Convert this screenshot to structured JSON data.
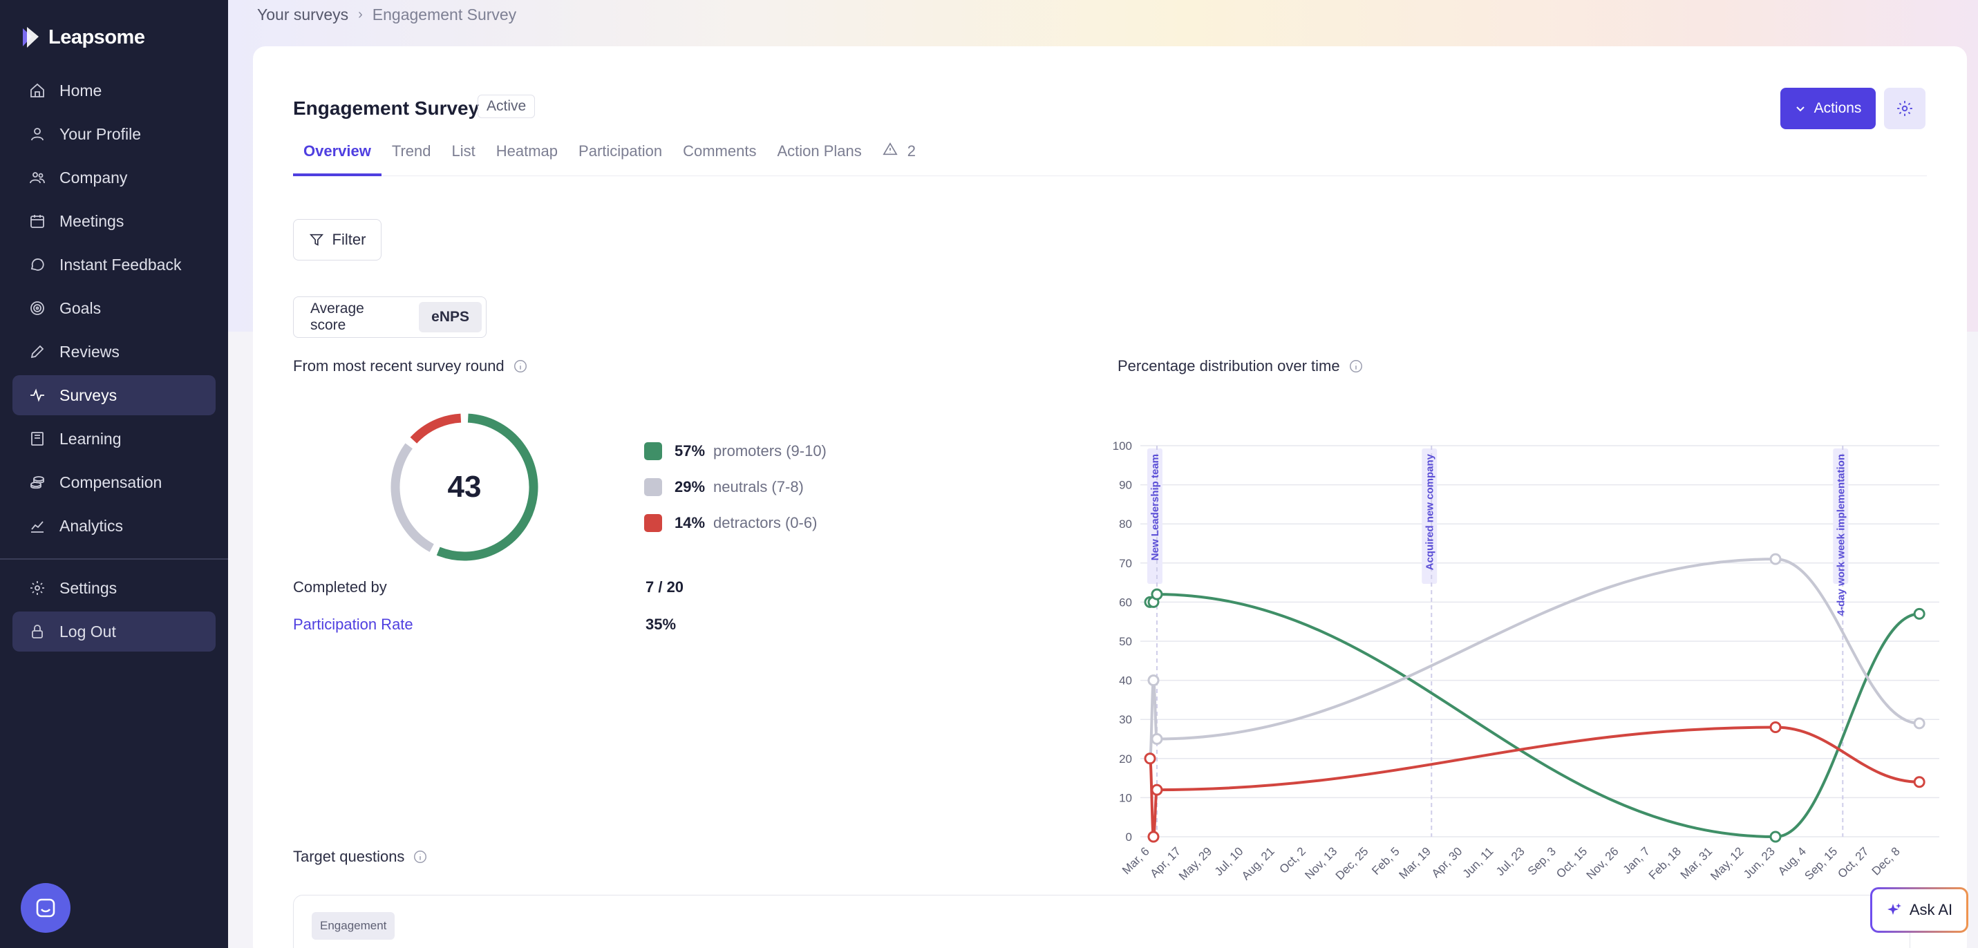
{
  "app": {
    "name": "Leapsome"
  },
  "sidebar": {
    "items": [
      {
        "label": "Home",
        "icon": "home-icon"
      },
      {
        "label": "Your Profile",
        "icon": "user-icon"
      },
      {
        "label": "Company",
        "icon": "users-icon"
      },
      {
        "label": "Meetings",
        "icon": "calendar-icon"
      },
      {
        "label": "Instant Feedback",
        "icon": "chat-icon"
      },
      {
        "label": "Goals",
        "icon": "target-icon"
      },
      {
        "label": "Reviews",
        "icon": "pencil-icon"
      },
      {
        "label": "Surveys",
        "icon": "pulse-icon",
        "active": true
      },
      {
        "label": "Learning",
        "icon": "book-icon"
      },
      {
        "label": "Compensation",
        "icon": "coins-icon"
      },
      {
        "label": "Analytics",
        "icon": "chart-icon"
      }
    ],
    "bottom_items": [
      {
        "label": "Settings",
        "icon": "gear-icon"
      },
      {
        "label": "Log Out",
        "icon": "lock-icon"
      }
    ]
  },
  "breadcrumb": {
    "parent": "Your surveys",
    "current": "Engagement Survey"
  },
  "survey": {
    "title": "Engagement Survey",
    "status": "Active"
  },
  "header": {
    "actions_label": "Actions"
  },
  "tabs": [
    {
      "label": "Overview",
      "active": true
    },
    {
      "label": "Trend"
    },
    {
      "label": "List"
    },
    {
      "label": "Heatmap"
    },
    {
      "label": "Participation"
    },
    {
      "label": "Comments"
    },
    {
      "label": "Action Plans"
    }
  ],
  "warning_count": "2",
  "filter": {
    "label": "Filter"
  },
  "score_toggle": {
    "options": [
      "Average score",
      "eNPS"
    ],
    "selected": "eNPS"
  },
  "recent": {
    "title": "From most recent survey round",
    "enps_score": "43",
    "legend": [
      {
        "pct": "57%",
        "label": "promoters (9-10)",
        "color": "#3f8f67",
        "value": 57
      },
      {
        "pct": "29%",
        "label": "neutrals (7-8)",
        "color": "#c6c7d3",
        "value": 29
      },
      {
        "pct": "14%",
        "label": "detractors (0-6)",
        "color": "#d2453f",
        "value": 14
      }
    ],
    "completed_label": "Completed by",
    "completed_value": "7 / 20",
    "participation_label": "Participation Rate",
    "participation_value": "35%"
  },
  "distribution": {
    "title": "Percentage distribution over time"
  },
  "chart_data": {
    "type": "line",
    "title": "Percentage distribution over time",
    "ylim": [
      0,
      100
    ],
    "yticks": [
      0,
      10,
      20,
      30,
      40,
      50,
      60,
      70,
      80,
      90,
      100
    ],
    "xticks": [
      "Mar, 6",
      "Apr, 17",
      "May, 29",
      "Jul, 10",
      "Aug, 21",
      "Oct, 2",
      "Nov, 13",
      "Dec, 25",
      "Feb, 5",
      "Mar, 19",
      "Apr, 30",
      "Jun, 11",
      "Jul, 23",
      "Sep, 3",
      "Oct, 15",
      "Nov, 26",
      "Jan, 7",
      "Feb, 18",
      "Mar, 31",
      "May, 12",
      "Jun, 23",
      "Aug, 4",
      "Sep, 15",
      "Oct, 27",
      "Dec, 8"
    ],
    "annotations": [
      {
        "x": "Mar, 13",
        "label": "New Leadership team"
      },
      {
        "x": "Mar, 19",
        "label": "Acquired new company"
      },
      {
        "x": "Sep, 22",
        "label": "4-day work week implementation"
      }
    ],
    "series": [
      {
        "name": "promoters",
        "color": "#3f8f67",
        "points": [
          [
            "Mar, 6",
            60
          ],
          [
            "Mar, 9",
            60
          ],
          [
            "Mar, 13",
            62
          ],
          [
            "Jun, 23",
            0
          ],
          [
            "Jan, 1",
            57
          ]
        ]
      },
      {
        "name": "neutrals",
        "color": "#c6c7d3",
        "points": [
          [
            "Mar, 6",
            20
          ],
          [
            "Mar, 9",
            40
          ],
          [
            "Mar, 13",
            25
          ],
          [
            "Jun, 23",
            71
          ],
          [
            "Jan, 1",
            29
          ]
        ]
      },
      {
        "name": "detractors",
        "color": "#d2453f",
        "points": [
          [
            "Mar, 6",
            20
          ],
          [
            "Mar, 9",
            0
          ],
          [
            "Mar, 13",
            12
          ],
          [
            "Jun, 23",
            28
          ],
          [
            "Jan, 1",
            14
          ]
        ]
      }
    ],
    "grid": true
  },
  "target": {
    "title": "Target questions",
    "tag": "Engagement"
  },
  "ask_ai": {
    "label": "Ask AI"
  }
}
